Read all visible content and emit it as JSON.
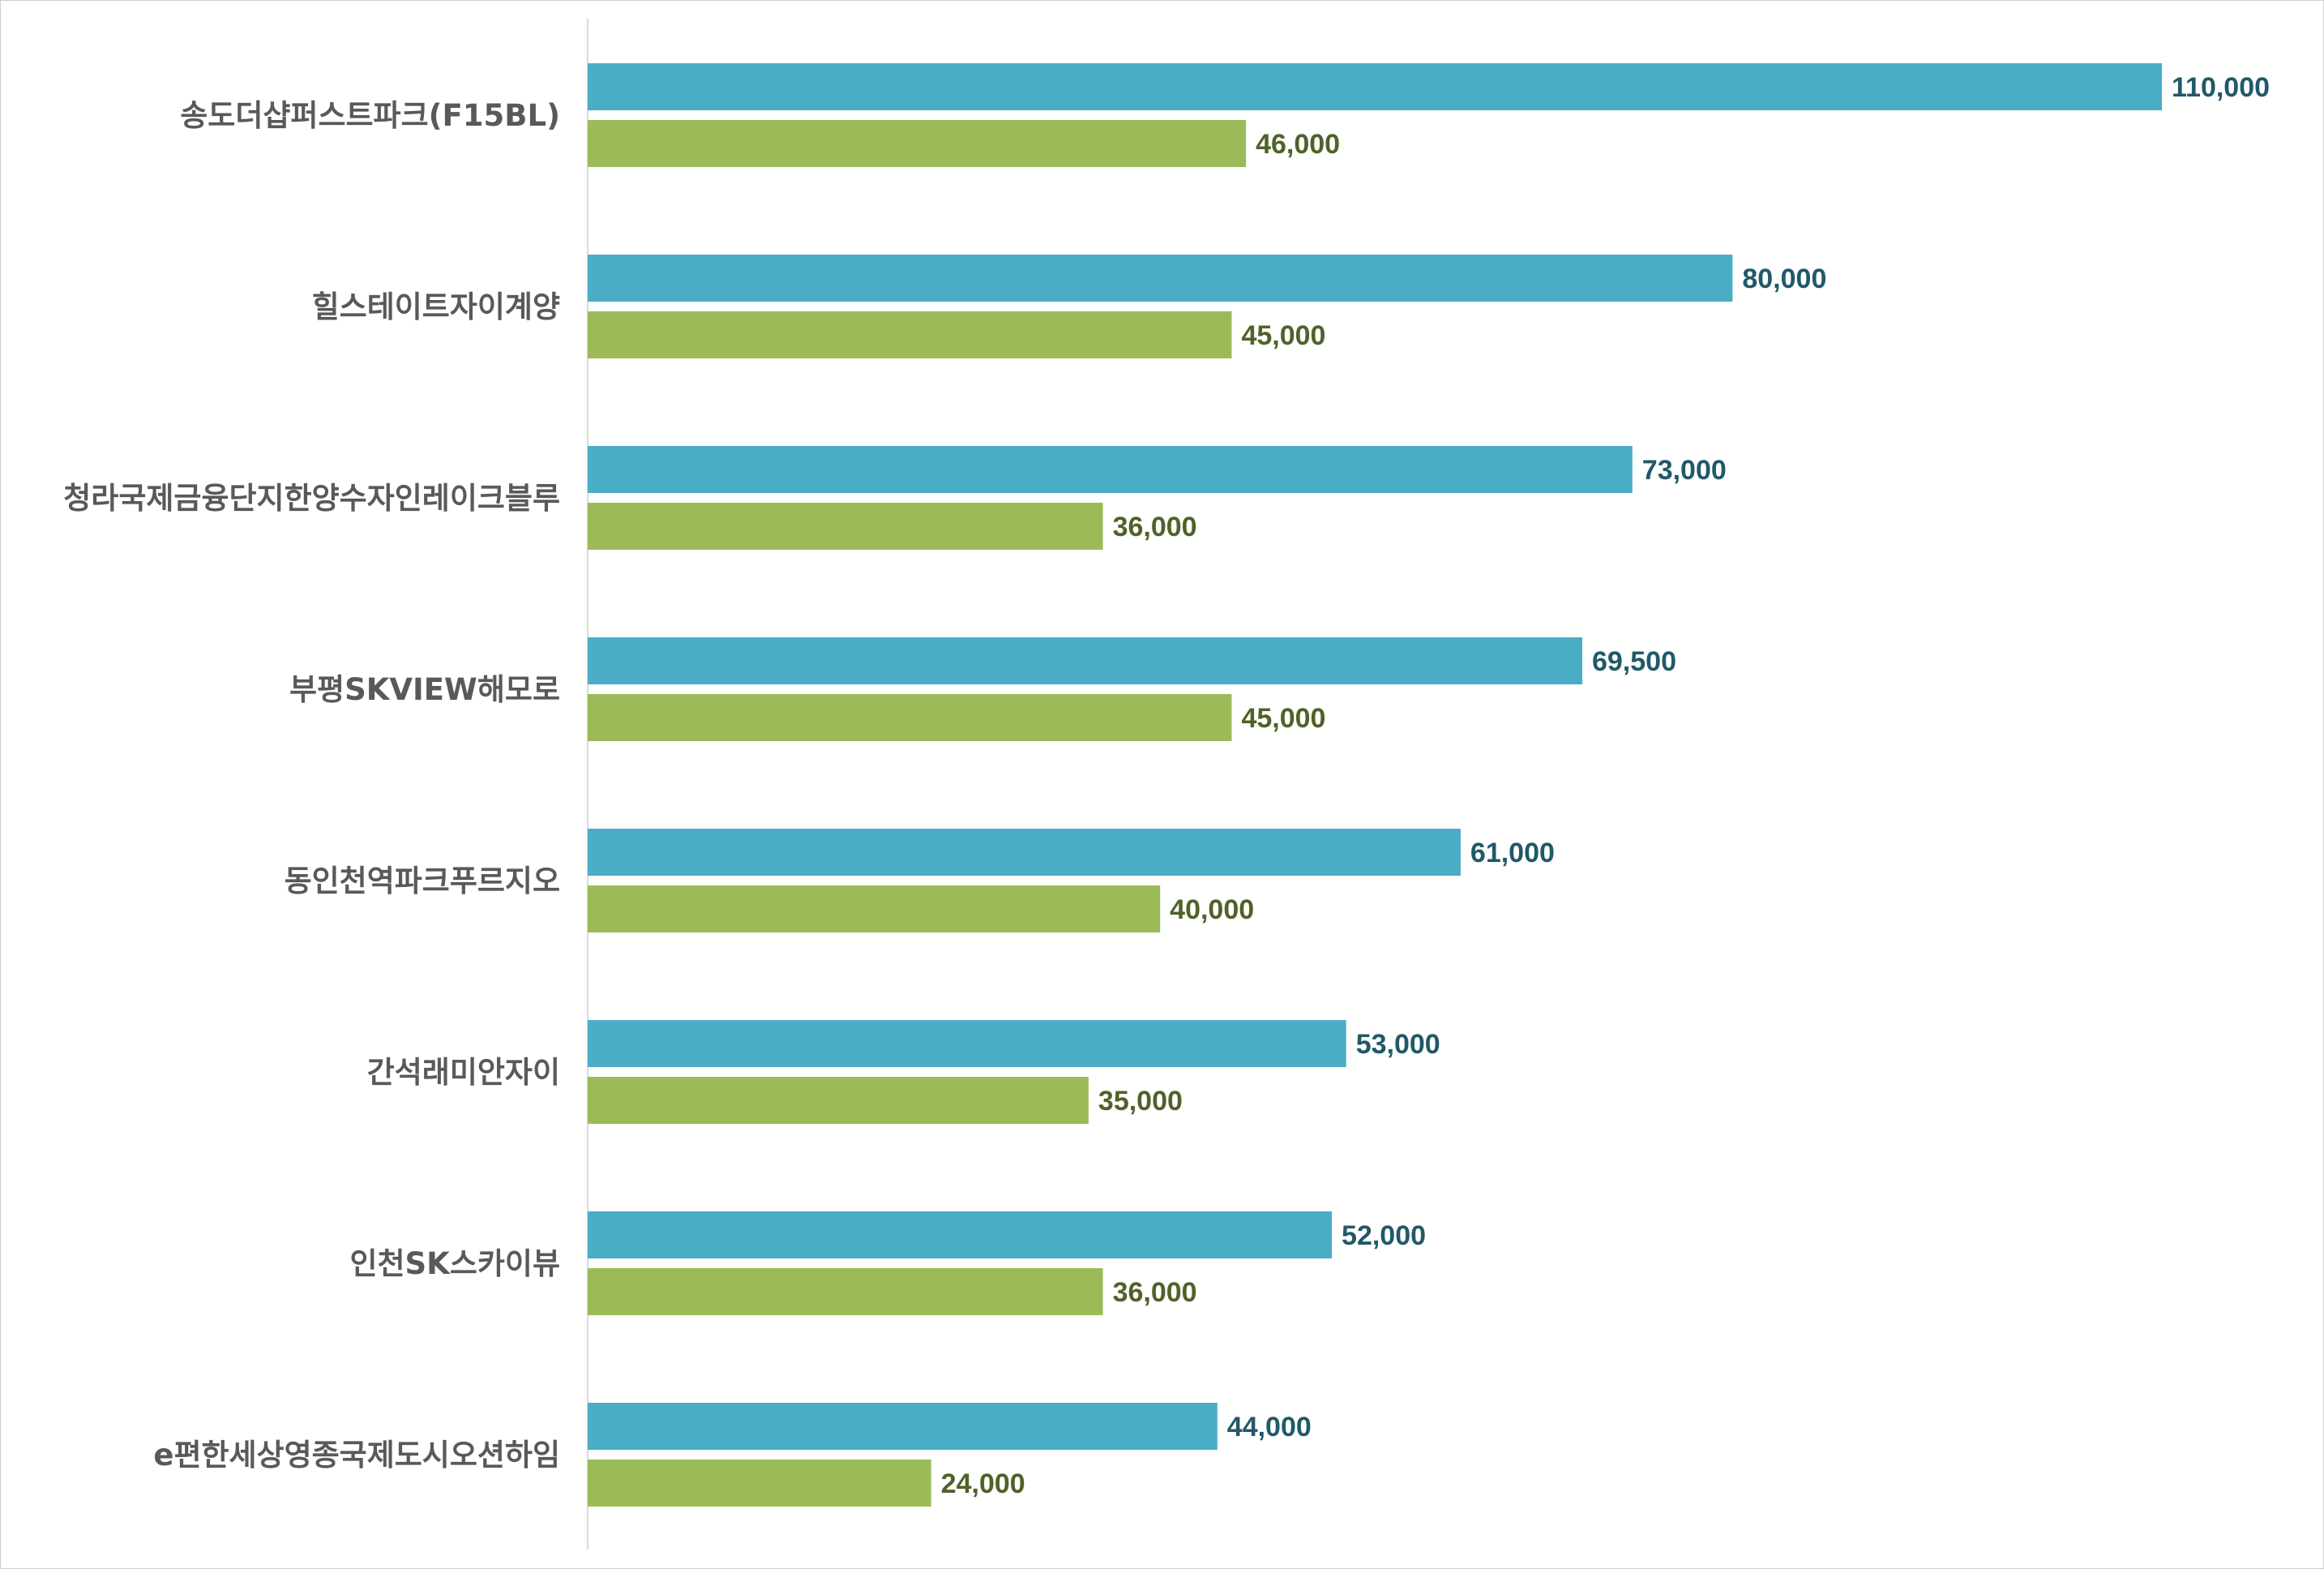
{
  "chart_data": {
    "type": "bar",
    "orientation": "horizontal",
    "categories": [
      "송도더샵퍼스트파크(F15BL)",
      "힐스테이트자이계양",
      "청라국제금융단지한양수자인레이크블루",
      "부평SKVIEW해모로",
      "동인천역파크푸르지오",
      "간석래미안자이",
      "인천SK스카이뷰",
      "e편한세상영종국제도시오션하임"
    ],
    "series": [
      {
        "values": [
          110000,
          80000,
          73000,
          69500,
          61000,
          53000,
          52000,
          44000
        ],
        "labels": [
          "110,000",
          "80,000",
          "73,000",
          "69,500",
          "61,000",
          "53,000",
          "52,000",
          "44,000"
        ],
        "color": "#4BACC6",
        "label_color": "#215968"
      },
      {
        "values": [
          46000,
          45000,
          36000,
          45000,
          40000,
          35000,
          36000,
          24000
        ],
        "labels": [
          "46,000",
          "45,000",
          "36,000",
          "45,000",
          "40,000",
          "35,000",
          "36,000",
          "24,000"
        ],
        "color": "#9BBB59",
        "label_color": "#4F6228"
      }
    ],
    "xlim": [
      0,
      110000
    ],
    "grid": false,
    "legend": "none",
    "axis_color": "#d9d9d9"
  }
}
